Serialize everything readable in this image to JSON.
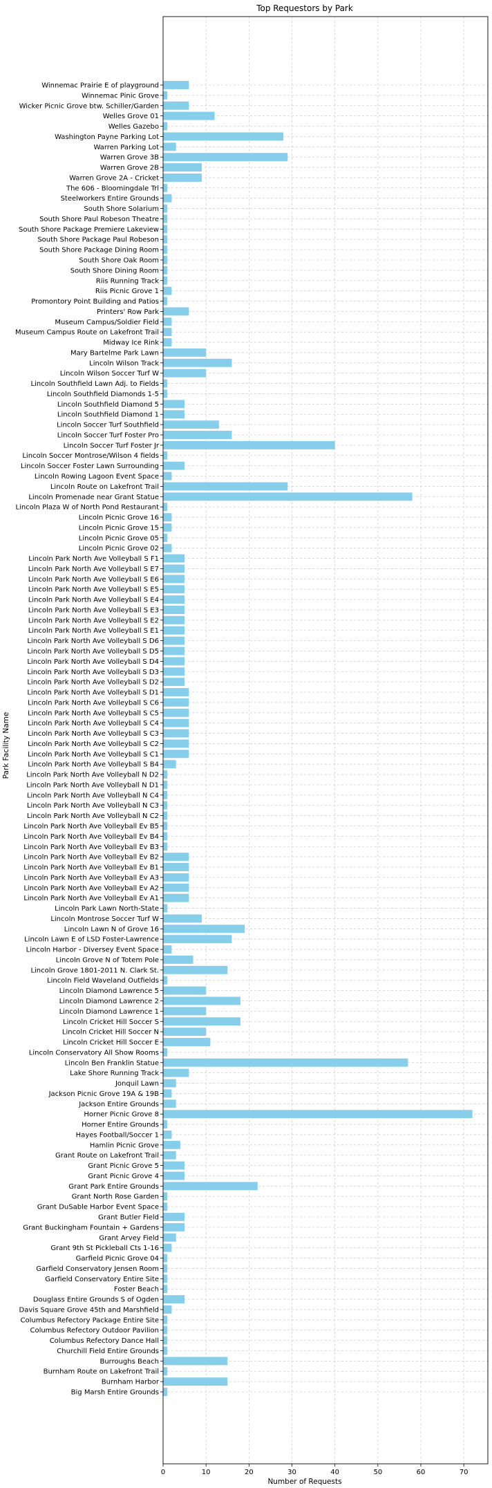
{
  "chart_data": {
    "type": "bar",
    "orientation": "horizontal",
    "title": "Top Requestors by Park",
    "xlabel": "Number of Requests",
    "ylabel": "Park Facility Name",
    "xlim": [
      0,
      75.6
    ],
    "xticks": [
      0,
      10,
      20,
      30,
      40,
      50,
      60,
      70
    ],
    "grid": true,
    "bar_color": "#87ceeb",
    "categories": [
      "Winnemac Prairie E of playground",
      "Winnemac Pinic Grove",
      "Wicker Picnic Grove btw. Schiller/Garden",
      "Welles Grove 01",
      "Welles Gazebo",
      "Washington Payne Parking Lot",
      "Warren Parking Lot",
      "Warren Grove 3B",
      "Warren Grove 2B",
      "Warren Grove 2A - Cricket",
      "The 606 - Bloomingdale Trl",
      "Steelworkers Entire Grounds",
      "South Shore Solarium",
      "South Shore Paul Robeson Theatre",
      "South Shore Package Premiere Lakeview",
      "South Shore Package Paul Robeson",
      "South Shore Package Dining Room",
      "South Shore Oak Room",
      "South Shore Dining Room",
      "Riis Running Track",
      "Riis Picnic Grove 1",
      "Promontory Point Building and Patios",
      "Printers' Row Park",
      "Museum Campus/Soldier Field",
      "Museum Campus Route on Lakefront Trail",
      "Midway Ice Rink",
      "Mary Bartelme Park Lawn",
      "Lincoln Wilson Track",
      "Lincoln Wilson Soccer Turf W",
      "Lincoln Southfield Lawn Adj. to Fields",
      "Lincoln Southfield Diamonds 1-5",
      "Lincoln Southfield Diamond 5",
      "Lincoln Southfield Diamond 1",
      "Lincoln Soccer Turf Southfield",
      "Lincoln Soccer Turf Foster Pro",
      "Lincoln Soccer Turf Foster Jr",
      "Lincoln Soccer Montrose/Wilson 4 fields",
      "Lincoln Soccer Foster Lawn Surrounding",
      "Lincoln Rowing Lagoon Event Space",
      "Lincoln Route on Lakefront Trail",
      "Lincoln Promenade near Grant Statue",
      "Lincoln Plaza W of North Pond Restaurant",
      "Lincoln Picnic Grove 16",
      "Lincoln Picnic Grove 15",
      "Lincoln Picnic Grove 05",
      "Lincoln Picnic Grove 02",
      "Lincoln Park North Ave Volleyball S F1",
      "Lincoln Park North Ave Volleyball S E7",
      "Lincoln Park North Ave Volleyball S E6",
      "Lincoln Park North Ave Volleyball S E5",
      "Lincoln Park North Ave Volleyball S E4",
      "Lincoln Park North Ave Volleyball S E3",
      "Lincoln Park North Ave Volleyball S E2",
      "Lincoln Park North Ave Volleyball S E1",
      "Lincoln Park North Ave Volleyball S D6",
      "Lincoln Park North Ave Volleyball S D5",
      "Lincoln Park North Ave Volleyball S D4",
      "Lincoln Park North Ave Volleyball S D3",
      "Lincoln Park North Ave Volleyball S D2",
      "Lincoln Park North Ave Volleyball S D1",
      "Lincoln Park North Ave Volleyball S C6",
      "Lincoln Park North Ave Volleyball S C5",
      "Lincoln Park North Ave Volleyball S C4",
      "Lincoln Park North Ave Volleyball S C3",
      "Lincoln Park North Ave Volleyball S C2",
      "Lincoln Park North Ave Volleyball S C1",
      "Lincoln Park North Ave Volleyball S B4",
      "Lincoln Park North Ave Volleyball N D2",
      "Lincoln Park North Ave Volleyball N D1",
      "Lincoln Park North Ave Volleyball N C4",
      "Lincoln Park North Ave Volleyball N C3",
      "Lincoln Park North Ave Volleyball N C2",
      "Lincoln Park North Ave Volleyball Ev B5",
      "Lincoln Park North Ave Volleyball Ev B4",
      "Lincoln Park North Ave Volleyball Ev B3",
      "Lincoln Park North Ave Volleyball Ev B2",
      "Lincoln Park North Ave Volleyball Ev B1",
      "Lincoln Park North Ave Volleyball Ev A3",
      "Lincoln Park North Ave Volleyball Ev A2",
      "Lincoln Park North Ave Volleyball Ev A1",
      "Lincoln Park Lawn North-State",
      "Lincoln Montrose Soccer Turf W",
      "Lincoln Lawn N of Grove 16",
      "Lincoln Lawn E of LSD Foster-Lawrence",
      "Lincoln Harbor - Diversey Event Space",
      "Lincoln Grove N of Totem Pole",
      "Lincoln Grove 1801-2011 N. Clark St.",
      "Lincoln Field Waveland Outfields",
      "Lincoln Diamond Lawrence 5",
      "Lincoln Diamond Lawrence 2",
      "Lincoln Diamond Lawrence 1",
      "Lincoln Cricket Hill Soccer S",
      "Lincoln Cricket Hill Soccer N",
      "Lincoln Cricket Hill Soccer E",
      "Lincoln Conservatory All Show Rooms",
      "Lincoln Ben Franklin Statue",
      "Lake Shore Running Track",
      "Jonquil Lawn",
      "Jackson Picnic Grove 19A & 19B",
      "Jackson Entire Grounds",
      "Horner Picnic Grove 8",
      "Horner Entire Grounds",
      "Hayes Football/Soccer 1",
      "Hamlin Picnic Grove",
      "Grant Route on Lakefront Trail",
      "Grant Picnic Grove 5",
      "Grant Picnic Grove 4",
      "Grant Park Entire Grounds",
      "Grant North Rose Garden",
      "Grant DuSable Harbor Event Space",
      "Grant Butler Field",
      "Grant Buckingham Fountain + Gardens",
      "Grant Arvey Field",
      "Grant 9th St Pickleball Cts 1-16",
      "Garfield Picnic Grove 04",
      "Garfield Conservatory Jensen Room",
      "Garfield Conservatory Entire Site",
      "Foster Beach",
      "Douglass Entire Grounds S of Ogden",
      "Davis Square Grove 45th and Marshfield",
      "Columbus Refectory Package Entire Site",
      "Columbus Refectory Outdoor Pavilion",
      "Columbus Refectory Dance Hall",
      "Churchill Field Entire Grounds",
      "Burroughs Beach",
      "Burnham Route on Lakefront Trail",
      "Burnham Harbor",
      "Big Marsh Entire Grounds"
    ],
    "values": [
      6,
      1,
      6,
      12,
      1,
      28,
      3,
      29,
      9,
      9,
      1,
      2,
      1,
      1,
      1,
      1,
      1,
      1,
      1,
      1,
      2,
      1,
      6,
      2,
      2,
      2,
      10,
      16,
      10,
      1,
      1,
      5,
      5,
      13,
      16,
      40,
      1,
      5,
      2,
      29,
      58,
      1,
      2,
      2,
      1,
      2,
      5,
      5,
      5,
      5,
      5,
      5,
      5,
      5,
      5,
      5,
      5,
      5,
      5,
      6,
      6,
      6,
      6,
      6,
      6,
      6,
      3,
      1,
      1,
      1,
      1,
      1,
      1,
      1,
      1,
      6,
      6,
      6,
      6,
      6,
      1,
      9,
      19,
      16,
      2,
      7,
      15,
      1,
      10,
      18,
      10,
      18,
      10,
      11,
      1,
      57,
      6,
      3,
      2,
      3,
      72,
      1,
      2,
      4,
      3,
      5,
      5,
      22,
      1,
      1,
      5,
      5,
      3,
      2,
      1,
      1,
      1,
      1,
      5,
      2,
      1,
      1,
      1,
      1,
      15,
      1,
      15,
      1
    ]
  }
}
